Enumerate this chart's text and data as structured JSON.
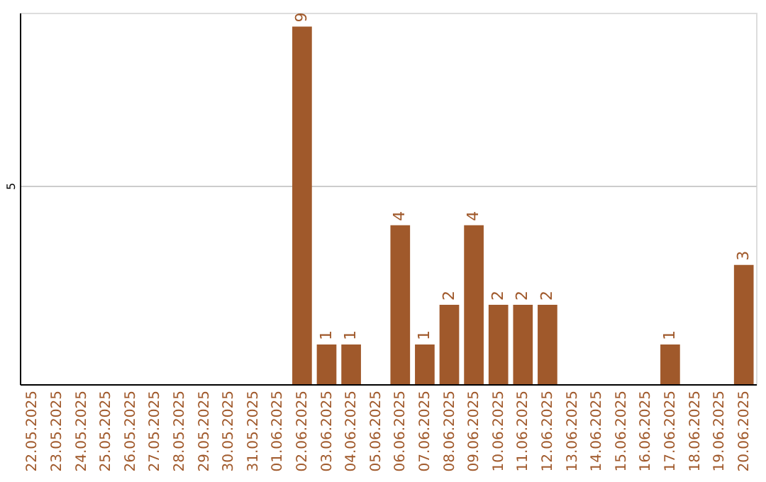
{
  "chart_data": {
    "type": "bar",
    "categories": [
      "22.05.2025",
      "23.05.2025",
      "24.05.2025",
      "25.05.2025",
      "26.05.2025",
      "27.05.2025",
      "28.05.2025",
      "29.05.2025",
      "30.05.2025",
      "31.05.2025",
      "01.06.2025",
      "02.06.2025",
      "03.06.2025",
      "04.06.2025",
      "05.06.2025",
      "06.06.2025",
      "07.06.2025",
      "08.06.2025",
      "09.06.2025",
      "10.06.2025",
      "11.06.2025",
      "12.06.2025",
      "13.06.2025",
      "14.06.2025",
      "15.06.2025",
      "16.06.2025",
      "17.06.2025",
      "18.06.2025",
      "19.06.2025",
      "20.06.2025"
    ],
    "values": [
      0,
      0,
      0,
      0,
      0,
      0,
      0,
      0,
      0,
      0,
      0,
      9,
      1,
      1,
      0,
      4,
      1,
      2,
      4,
      2,
      2,
      2,
      0,
      0,
      0,
      0,
      1,
      0,
      0,
      3
    ],
    "value_labels": [
      null,
      null,
      null,
      null,
      null,
      null,
      null,
      null,
      null,
      null,
      null,
      "9",
      "1",
      "1",
      null,
      "4",
      "1",
      "2",
      "4",
      "2",
      "2",
      "2",
      null,
      null,
      null,
      null,
      "1",
      null,
      null,
      "3"
    ],
    "color": "#a0592b",
    "ylim": [
      0,
      9.35
    ],
    "yticks": [
      5
    ],
    "grid": "y"
  }
}
